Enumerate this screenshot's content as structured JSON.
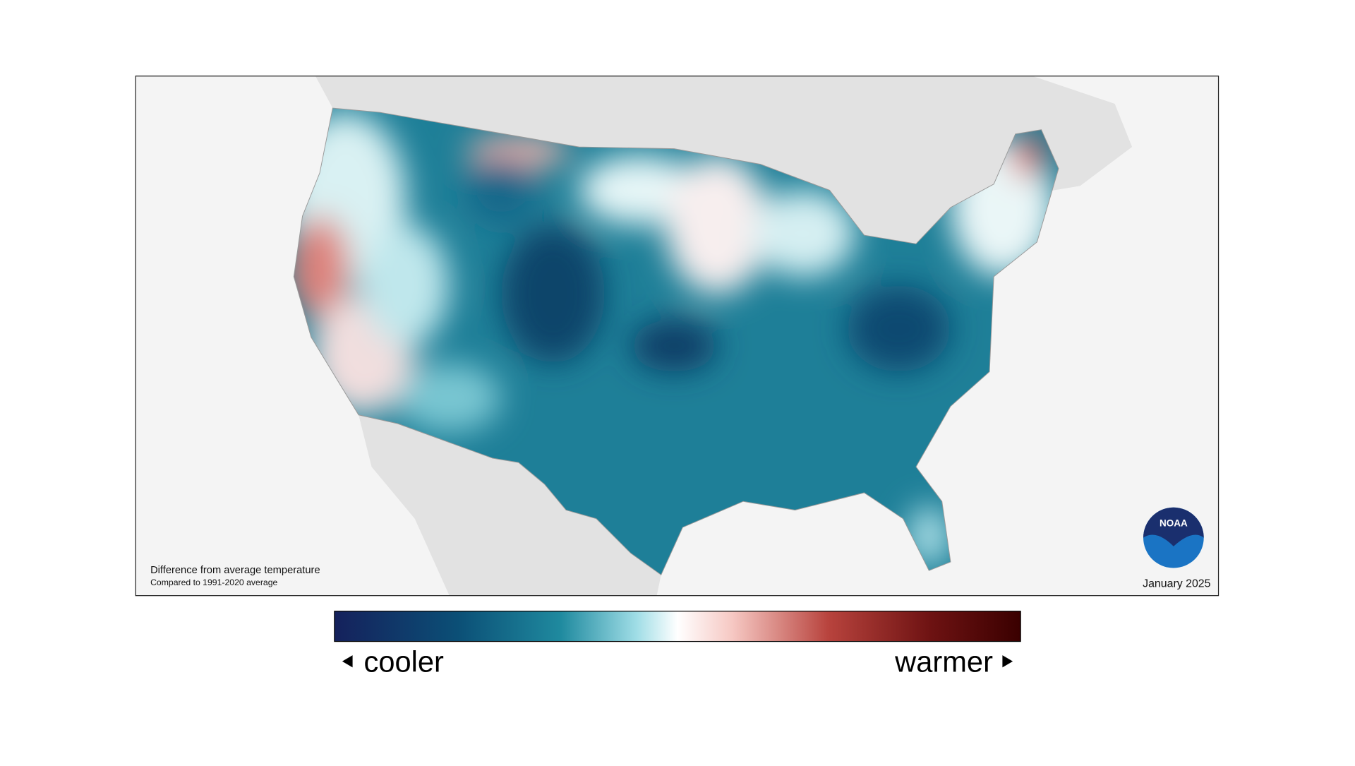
{
  "map": {
    "note_title": "Difference from average temperature",
    "note_subtitle": "Compared to 1991-2020 average",
    "date": "January 2025",
    "logo": "NOAA",
    "legend": {
      "low": "cooler",
      "high": "warmer"
    }
  }
}
